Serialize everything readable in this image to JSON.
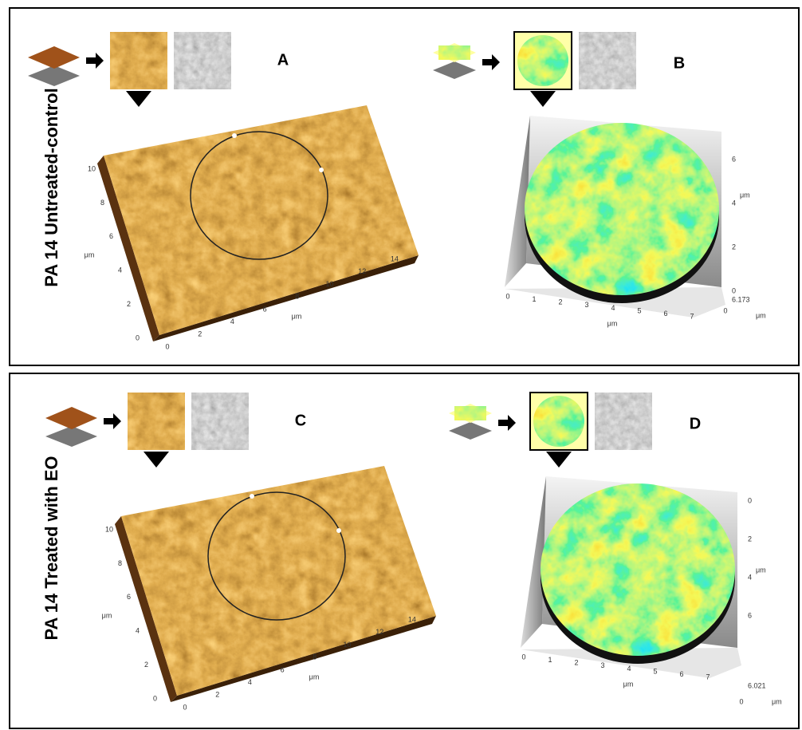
{
  "panels": [
    {
      "row_label": "PA 14 Untreated-control",
      "left": {
        "label": "A",
        "y_ticks": [
          0,
          2,
          4,
          6,
          8,
          10
        ],
        "y_unit": "μm",
        "x_ticks": [
          0,
          2,
          4,
          6,
          8,
          10,
          12,
          14
        ],
        "x_unit": "μm"
      },
      "right": {
        "label": "B",
        "x_ticks": [
          0,
          1,
          2,
          3,
          4,
          5,
          6,
          7
        ],
        "x_unit": "μm",
        "z_ticks": [
          0,
          2,
          4,
          6
        ],
        "z_unit": "μm",
        "z_max": "6.173",
        "depth_tick": 0,
        "depth_unit": "μm"
      }
    },
    {
      "row_label": "PA 14 Treated with EO",
      "left": {
        "label": "C",
        "y_ticks": [
          0,
          2,
          4,
          6,
          8,
          10
        ],
        "y_unit": "μm",
        "x_ticks": [
          0,
          2,
          4,
          6,
          8,
          10,
          12,
          14
        ],
        "x_unit": "μm"
      },
      "right": {
        "label": "D",
        "x_ticks": [
          0,
          1,
          2,
          3,
          4,
          5,
          6,
          7
        ],
        "x_unit": "μm",
        "z_ticks": [
          0,
          2,
          4,
          6
        ],
        "z_unit": "μm",
        "z_max": "6.021",
        "depth_tick": 0,
        "depth_unit": "μm"
      }
    }
  ]
}
